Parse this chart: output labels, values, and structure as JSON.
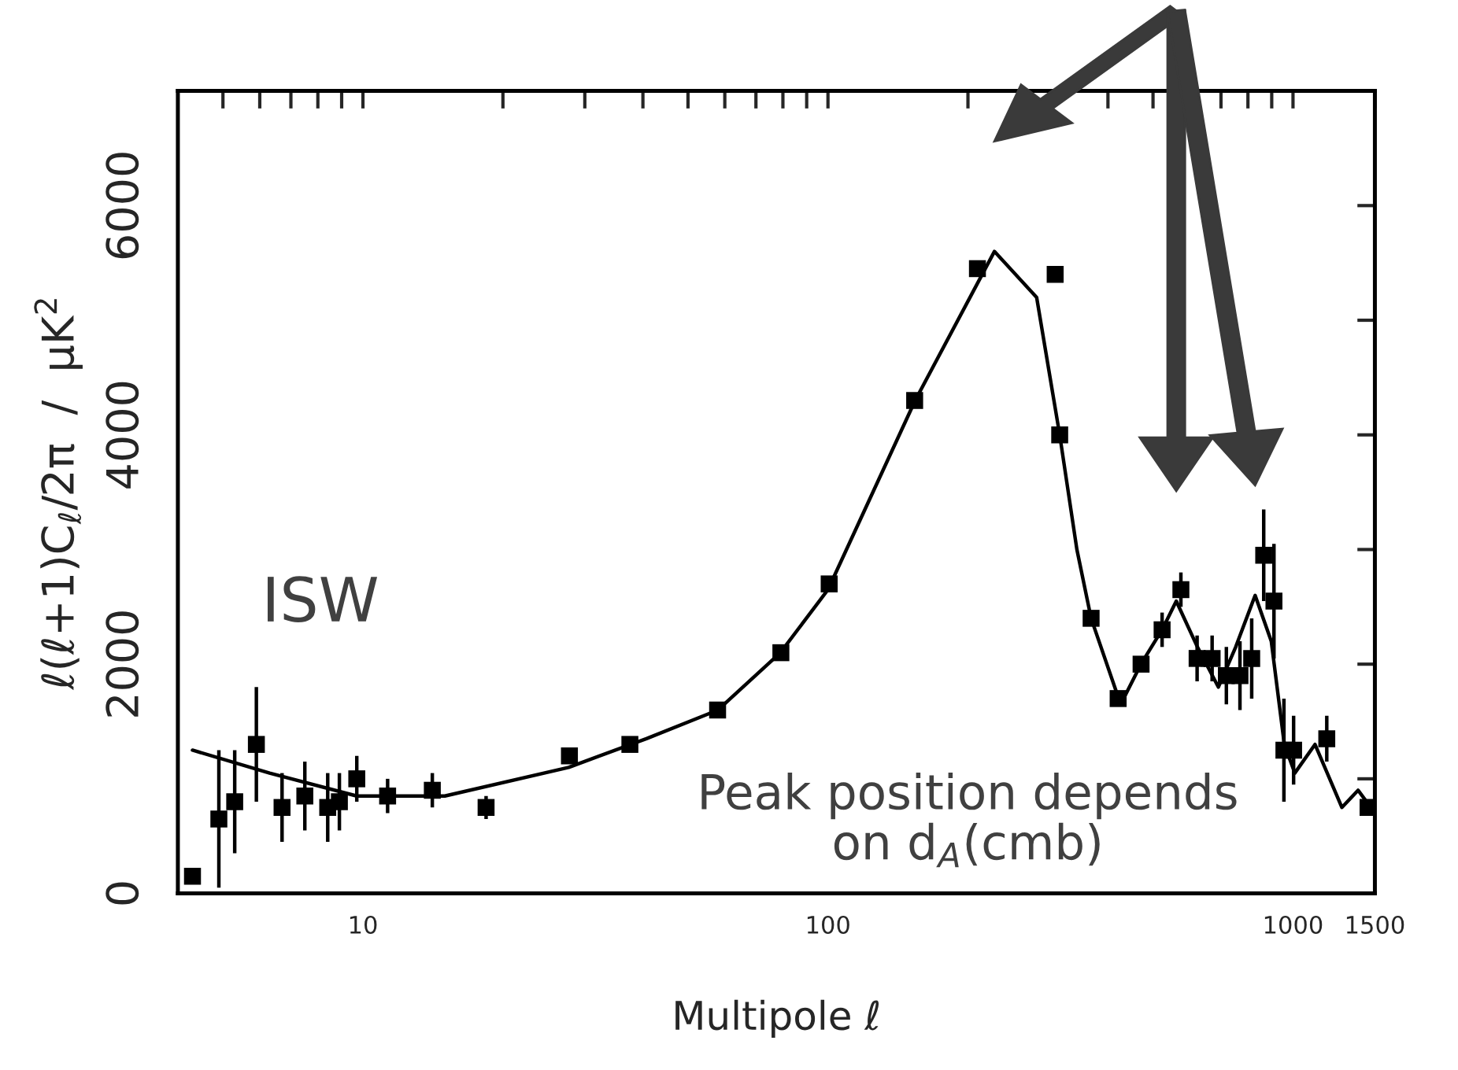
{
  "chart_data": {
    "type": "scatter",
    "xlabel": "Multipole ℓ",
    "ylabel": "ℓ(ℓ+1)C$_{ℓ}$/2π  /  μK$^{2}$",
    "log": "x",
    "xlim": [
      4,
      1500
    ],
    "ylim": [
      0,
      7000
    ],
    "xticks": [
      {
        "value": 5,
        "label": null
      },
      {
        "value": 6,
        "label": null
      },
      {
        "value": 7,
        "label": null
      },
      {
        "value": 8,
        "label": null
      },
      {
        "value": 9,
        "label": null
      },
      10,
      {
        "value": 20,
        "label": null
      },
      {
        "value": 30,
        "label": null
      },
      {
        "value": 40,
        "label": null
      },
      {
        "value": 50,
        "label": null
      },
      {
        "value": 60,
        "label": null
      },
      {
        "value": 70,
        "label": null
      },
      {
        "value": 80,
        "label": null
      },
      {
        "value": 90,
        "label": null
      },
      100,
      {
        "value": 200,
        "label": null
      },
      {
        "value": 300,
        "label": null
      },
      {
        "value": 400,
        "label": null
      },
      {
        "value": 500,
        "label": null
      },
      {
        "value": 600,
        "label": null
      },
      {
        "value": 700,
        "label": null
      },
      {
        "value": 800,
        "label": null
      },
      {
        "value": 900,
        "label": null
      },
      1000,
      1500
    ],
    "yticks": [
      0,
      {
        "value": 1000,
        "label": null
      },
      2000,
      {
        "value": 3000,
        "label": null
      },
      4000,
      {
        "value": 5000,
        "label": null
      },
      6000
    ],
    "grid": false,
    "series": [
      {
        "type": "line",
        "color": "#000000",
        "marker": "none",
        "line_style": "solid",
        "x": [
          4.3,
          6.3,
          9.7,
          15,
          27.7,
          40.7,
          58,
          79,
          100,
          154,
          228,
          281,
          315,
          343,
          368,
          426,
          471,
          523,
          561,
          623,
          691,
          753,
          829,
          898,
          958,
          1009,
          1115,
          1274,
          1380,
          1440
        ],
        "values": [
          1250,
          1050,
          850,
          850,
          1100,
          1350,
          1600,
          2100,
          2650,
          4300,
          5600,
          5200,
          4000,
          3000,
          2400,
          1650,
          2000,
          2300,
          2550,
          2150,
          1800,
          2150,
          2600,
          2200,
          1300,
          1050,
          1300,
          750,
          900,
          800
        ]
      },
      {
        "color": "#000000",
        "marker": "square",
        "x": [
          4.3,
          4.9,
          5.3,
          5.9,
          6.7,
          7.5,
          8.4,
          8.9,
          9.7,
          11.3,
          14.1,
          18.4,
          27.8,
          37.5,
          57.9,
          79.2,
          100.6,
          153.6,
          209.6,
          308,
          315,
          368,
          420.7,
          471.3,
          523,
          574,
          622,
          670,
          719,
          769,
          815,
          865,
          910,
          956,
          1003,
          1182,
          1450
        ],
        "values": [
          150,
          650,
          800,
          1300,
          750,
          850,
          750,
          800,
          1000,
          850,
          900,
          750,
          1200,
          1300,
          1600,
          2100,
          2700,
          4300,
          5450,
          5400,
          4000,
          2400,
          1700,
          2000,
          2300,
          2650,
          2050,
          2050,
          1900,
          1900,
          2050,
          2950,
          2550,
          1250,
          1250,
          1350,
          750
        ],
        "errors": [
          null,
          600,
          450,
          500,
          300,
          300,
          300,
          250,
          200,
          150,
          150,
          100,
          null,
          null,
          null,
          null,
          null,
          null,
          null,
          null,
          null,
          null,
          null,
          null,
          150,
          150,
          200,
          200,
          250,
          300,
          350,
          400,
          500,
          450,
          300,
          200,
          null
        ]
      }
    ],
    "annotations": [
      "ISW",
      "Peak position depends\non d$_{A}$(cmb)"
    ]
  }
}
